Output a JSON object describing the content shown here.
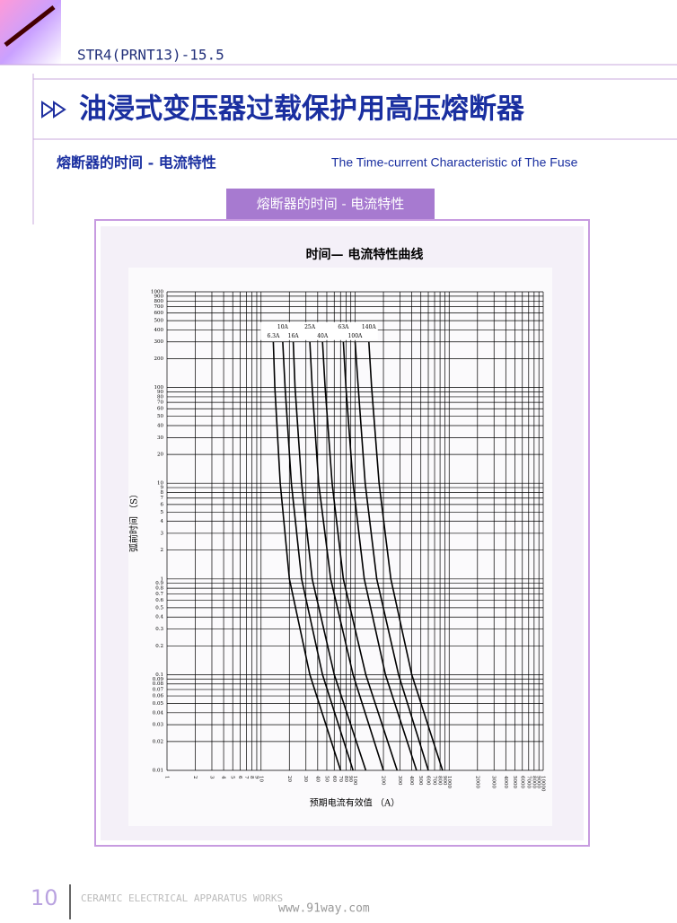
{
  "header": {
    "code": "STR4(PRNT13)-15.5"
  },
  "title": "油浸式变压器过载保护用高压熔断器",
  "section": {
    "title_cn": "熔断器的时间 - 电流特性",
    "title_en": "The Time-current Characteristic of The Fuse"
  },
  "tab": "熔断器的时间 - 电流特性",
  "chart_data": {
    "type": "line",
    "title": "时间— 电流特性曲线",
    "x_label": "预期电流有效值 （A）",
    "y_label": "弧前时间 （S）",
    "xscale": "log",
    "yscale": "log",
    "grid": true,
    "xlim": [
      1,
      10000
    ],
    "ylim": [
      0.01,
      1000
    ],
    "xticks": [
      1,
      2,
      3,
      4,
      5,
      6,
      7,
      8,
      9,
      10,
      20,
      30,
      40,
      50,
      60,
      70,
      80,
      90,
      100,
      200,
      300,
      400,
      500,
      600,
      700,
      800,
      900,
      1000,
      2000,
      3000,
      4000,
      5000,
      6000,
      7000,
      8000,
      9000,
      10000
    ],
    "yticks": [
      0.01,
      0.02,
      0.03,
      0.04,
      0.05,
      0.06,
      0.07,
      0.08,
      0.09,
      0.1,
      0.2,
      0.3,
      0.4,
      0.5,
      0.6,
      0.7,
      0.8,
      0.9,
      1,
      2,
      3,
      4,
      5,
      6,
      7,
      8,
      9,
      10,
      20,
      30,
      40,
      50,
      60,
      70,
      80,
      90,
      100,
      200,
      300,
      400,
      500,
      600,
      700,
      800,
      900,
      1000
    ],
    "series": [
      {
        "name": "6.3A",
        "color": "#000000",
        "x": [
          13.5,
          14,
          16,
          20,
          33,
          70
        ],
        "values": [
          300,
          100,
          10,
          1,
          0.1,
          0.01
        ]
      },
      {
        "name": "10A",
        "color": "#000000",
        "x": [
          17,
          18,
          21,
          27,
          45,
          95
        ],
        "values": [
          300,
          100,
          10,
          1,
          0.1,
          0.01
        ]
      },
      {
        "name": "16A",
        "color": "#000000",
        "x": [
          22,
          23,
          27,
          35,
          60,
          130
        ],
        "values": [
          300,
          100,
          10,
          1,
          0.1,
          0.01
        ]
      },
      {
        "name": "25A",
        "color": "#000000",
        "x": [
          33,
          35,
          41,
          55,
          95,
          200
        ],
        "values": [
          300,
          100,
          10,
          1,
          0.1,
          0.01
        ]
      },
      {
        "name": "40A",
        "color": "#000000",
        "x": [
          45,
          48,
          57,
          75,
          130,
          280
        ],
        "values": [
          300,
          100,
          10,
          1,
          0.1,
          0.01
        ]
      },
      {
        "name": "63A",
        "color": "#000000",
        "x": [
          75,
          80,
          95,
          125,
          210,
          450
        ],
        "values": [
          300,
          100,
          10,
          1,
          0.1,
          0.01
        ]
      },
      {
        "name": "100A",
        "color": "#000000",
        "x": [
          100,
          108,
          128,
          170,
          290,
          600
        ],
        "values": [
          300,
          100,
          10,
          1,
          0.1,
          0.01
        ]
      },
      {
        "name": "140A",
        "color": "#000000",
        "x": [
          140,
          150,
          180,
          240,
          400,
          850
        ],
        "values": [
          300,
          100,
          10,
          1,
          0.1,
          0.01
        ]
      }
    ]
  },
  "footer": {
    "page": "10",
    "text": "CERAMIC ELECTRICAL APPARATUS WORKS",
    "watermark": "www.91way.com"
  }
}
